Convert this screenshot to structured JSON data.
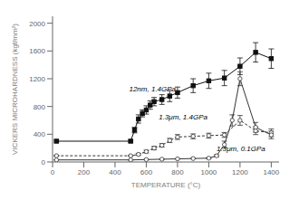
{
  "chart_data": {
    "type": "line",
    "xlabel": "TEMPERATURE (°C)",
    "ylabel": "VICKERS MICROHARDNESS (kgf/mm²)",
    "xlim": [
      0,
      1450
    ],
    "ylim": [
      0,
      2100
    ],
    "xticks": [
      0,
      200,
      400,
      600,
      800,
      1000,
      1200,
      1400
    ],
    "yticks": [
      0,
      400,
      800,
      1200,
      1600,
      2000
    ],
    "grid": false,
    "series": [
      {
        "color": "#111111",
        "marker": "square",
        "line_style": "solid",
        "x": [
          25,
          500,
          525,
          550,
          575,
          600,
          625,
          650,
          700,
          750,
          800,
          900,
          1000,
          1100,
          1200,
          1300,
          1400
        ],
        "values": [
          300,
          300,
          460,
          620,
          700,
          750,
          820,
          870,
          900,
          950,
          1000,
          1100,
          1170,
          1210,
          1380,
          1580,
          1490
        ],
        "yerr": [
          15,
          15,
          40,
          60,
          50,
          60,
          60,
          60,
          70,
          80,
          80,
          100,
          110,
          110,
          120,
          140,
          140
        ]
      },
      {
        "color": "#333333",
        "marker": "circle",
        "line_style": "dashed",
        "x": [
          25,
          500,
          550,
          600,
          650,
          700,
          750,
          800,
          900,
          1000,
          1100,
          1200,
          1300,
          1400
        ],
        "values": [
          90,
          90,
          110,
          150,
          200,
          240,
          310,
          360,
          370,
          380,
          390,
          600,
          450,
          420
        ],
        "yerr": [
          8,
          8,
          15,
          20,
          25,
          25,
          30,
          35,
          35,
          35,
          35,
          70,
          55,
          55
        ]
      },
      {
        "color": "#333333",
        "marker": "circle",
        "line_style": "solid",
        "x": [
          25,
          500,
          600,
          700,
          800,
          900,
          1000,
          1050,
          1100,
          1150,
          1200,
          1300,
          1400
        ],
        "values": [
          30,
          30,
          35,
          40,
          45,
          50,
          55,
          90,
          250,
          600,
          1200,
          500,
          390
        ],
        "yerr": [
          3,
          3,
          3,
          3,
          3,
          5,
          8,
          15,
          50,
          80,
          100,
          70,
          55
        ]
      }
    ],
    "annotations": [
      {
        "text": "12nm, 1.4GPa",
        "x": 490,
        "y": 1020
      },
      {
        "text": "1.3μm, 1.4GPa",
        "x": 680,
        "y": 610
      },
      {
        "text": "1.3μm, 0.1GPa",
        "x": 1050,
        "y": 155
      }
    ]
  }
}
